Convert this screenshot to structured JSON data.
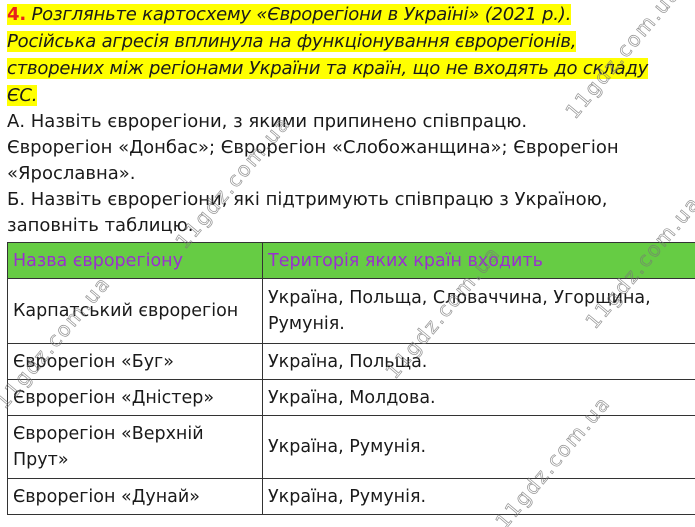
{
  "task": {
    "number": "4.",
    "prompt_lines": [
      "Розгляньте картосхему «Єврорегіони в Україні» (2021 р.).",
      "Російська агресія вплинула на функціонування єврорегіонів,",
      "створених між регіонами України та країн, що не входять до складу",
      "ЄС."
    ],
    "part_a_question": "А. Назвіть єврорегіони, з якими припинено співпрацю.",
    "part_a_answer_lines": [
      "Єврорегіон «Донбас»; Єврорегіон «Слобожанщина»; Єврорегіон",
      "«Ярославна»."
    ],
    "part_b_question_lines": [
      "Б. Назвіть єврорегіони, які підтримують співпрацю з Україною,",
      "заповніть таблицю."
    ]
  },
  "table": {
    "headers": [
      "Назва єврорегіону",
      "Територія яких країн входить"
    ],
    "rows": [
      [
        "Карпатський єврорегіон",
        "Україна, Польща, Словаччина, Угорщина, Румунія."
      ],
      [
        "Єврорегіон «Буг»",
        "Україна, Польща."
      ],
      [
        "Єврорегіон «Дністер»",
        "Україна, Молдова."
      ],
      [
        "Єврорегіон «Верхній Прут»",
        "Україна, Румунія."
      ],
      [
        "Єврорегіон «Дунай»",
        "Україна, Румунія."
      ]
    ]
  },
  "colors": {
    "highlight": "#ffff00",
    "task_number": "#e8201c",
    "header_bg": "#66cc44",
    "header_text": "#9a2fd0"
  },
  "watermark": "11gdz.com.ua"
}
